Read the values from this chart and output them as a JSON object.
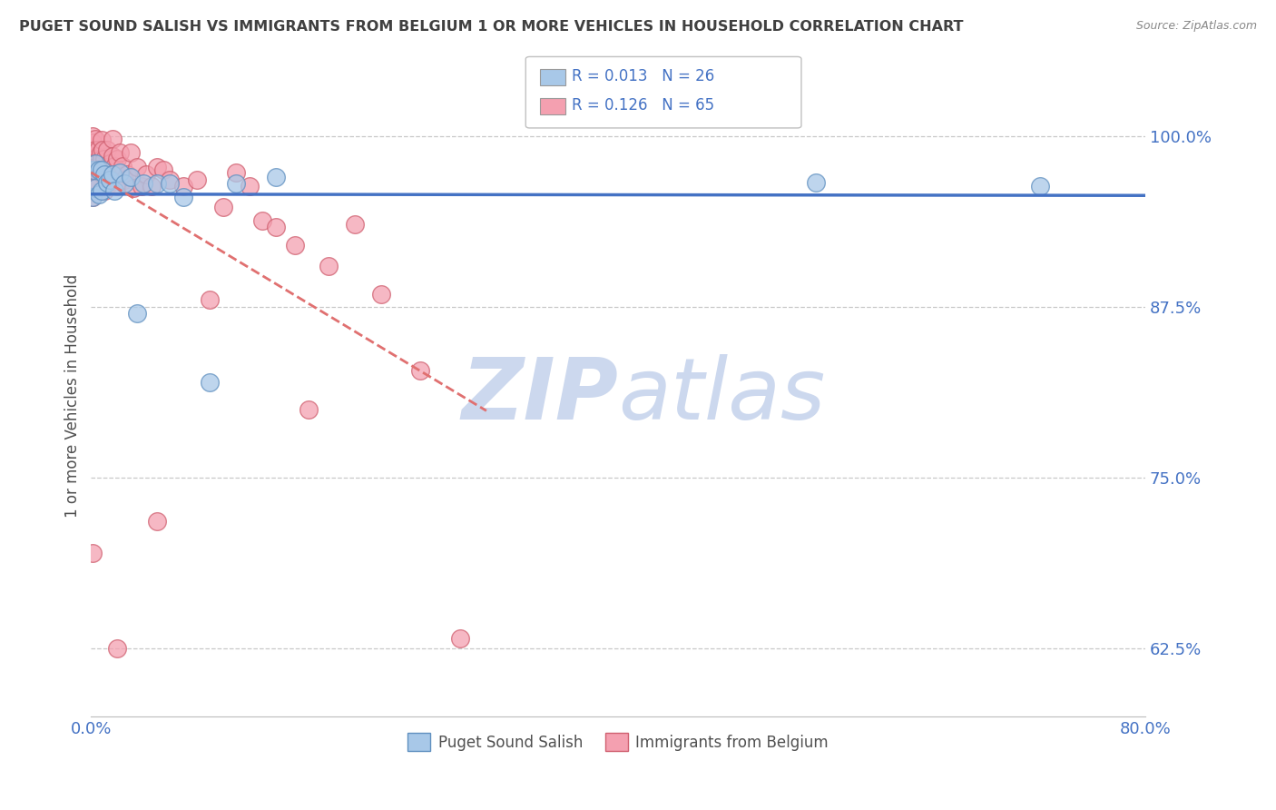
{
  "title": "PUGET SOUND SALISH VS IMMIGRANTS FROM BELGIUM 1 OR MORE VEHICLES IN HOUSEHOLD CORRELATION CHART",
  "source": "Source: ZipAtlas.com",
  "ylabel": "1 or more Vehicles in Household",
  "xlim": [
    0.0,
    0.8
  ],
  "ylim": [
    0.575,
    1.045
  ],
  "xticks": [
    0.0,
    0.1,
    0.2,
    0.3,
    0.4,
    0.5,
    0.6,
    0.7,
    0.8
  ],
  "ytick_positions": [
    0.625,
    0.75,
    0.875,
    1.0
  ],
  "yticklabels": [
    "62.5%",
    "75.0%",
    "87.5%",
    "100.0%"
  ],
  "legend_labels_bottom": [
    "Puget Sound Salish",
    "Immigrants from Belgium"
  ],
  "blue_scatter_x": [
    0.001,
    0.001,
    0.003,
    0.003,
    0.006,
    0.006,
    0.008,
    0.008,
    0.01,
    0.012,
    0.014,
    0.016,
    0.018,
    0.022,
    0.025,
    0.03,
    0.035,
    0.04,
    0.05,
    0.06,
    0.07,
    0.09,
    0.11,
    0.14,
    0.55,
    0.72
  ],
  "blue_scatter_y": [
    0.975,
    0.955,
    0.98,
    0.962,
    0.975,
    0.957,
    0.975,
    0.96,
    0.972,
    0.966,
    0.968,
    0.972,
    0.96,
    0.973,
    0.965,
    0.97,
    0.87,
    0.965,
    0.965,
    0.965,
    0.955,
    0.82,
    0.965,
    0.97,
    0.966,
    0.963
  ],
  "pink_scatter_x": [
    0.001,
    0.001,
    0.001,
    0.001,
    0.001,
    0.001,
    0.001,
    0.001,
    0.001,
    0.001,
    0.003,
    0.003,
    0.003,
    0.003,
    0.003,
    0.003,
    0.005,
    0.005,
    0.005,
    0.007,
    0.008,
    0.008,
    0.009,
    0.009,
    0.01,
    0.01,
    0.012,
    0.012,
    0.012,
    0.014,
    0.016,
    0.016,
    0.018,
    0.02,
    0.02,
    0.022,
    0.024,
    0.025,
    0.027,
    0.03,
    0.032,
    0.035,
    0.038,
    0.042,
    0.046,
    0.05,
    0.055,
    0.06,
    0.07,
    0.08,
    0.09,
    0.1,
    0.11,
    0.12,
    0.13,
    0.14,
    0.155,
    0.165,
    0.18,
    0.2,
    0.22,
    0.25,
    0.28,
    0.05,
    0.02
  ],
  "pink_scatter_y": [
    1.0,
    0.995,
    0.988,
    0.983,
    0.977,
    0.972,
    0.967,
    0.962,
    0.955,
    0.695,
    0.998,
    0.99,
    0.983,
    0.977,
    0.972,
    0.965,
    0.99,
    0.977,
    0.965,
    0.988,
    0.997,
    0.983,
    0.99,
    0.972,
    0.983,
    0.96,
    0.99,
    0.977,
    0.963,
    0.98,
    0.998,
    0.985,
    0.978,
    0.983,
    0.963,
    0.988,
    0.978,
    0.968,
    0.972,
    0.988,
    0.962,
    0.977,
    0.963,
    0.972,
    0.963,
    0.977,
    0.975,
    0.968,
    0.963,
    0.968,
    0.88,
    0.948,
    0.973,
    0.963,
    0.938,
    0.933,
    0.92,
    0.8,
    0.905,
    0.935,
    0.884,
    0.828,
    0.632,
    0.718,
    0.625
  ],
  "blue_line_color": "#4472c4",
  "pink_line_color": "#e07070",
  "blue_dot_face": "#a8c8e8",
  "blue_dot_edge": "#6090c0",
  "pink_dot_face": "#f4a0b0",
  "pink_dot_edge": "#d06070",
  "background_color": "#ffffff",
  "grid_color": "#c8c8c8",
  "title_color": "#404040",
  "axis_label_color": "#505050",
  "tick_label_color": "#4472c4",
  "watermark_ZIP": "ZIP",
  "watermark_atlas": "atlas",
  "watermark_color": "#ccd8ee"
}
